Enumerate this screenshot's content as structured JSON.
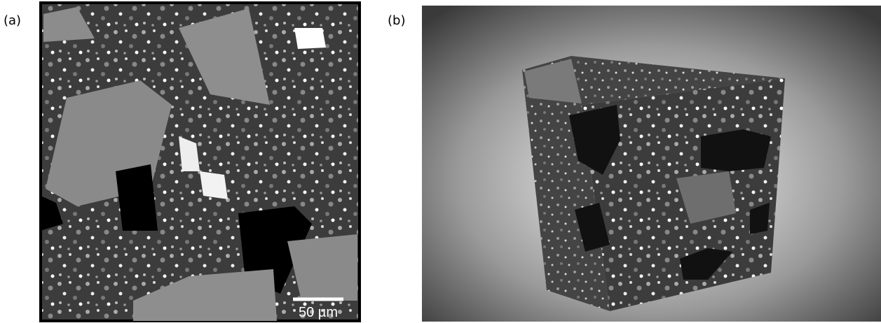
{
  "panels": [
    {
      "label": "(a)",
      "scale_bar": "50 µm"
    },
    {
      "label": "(b)"
    }
  ]
}
